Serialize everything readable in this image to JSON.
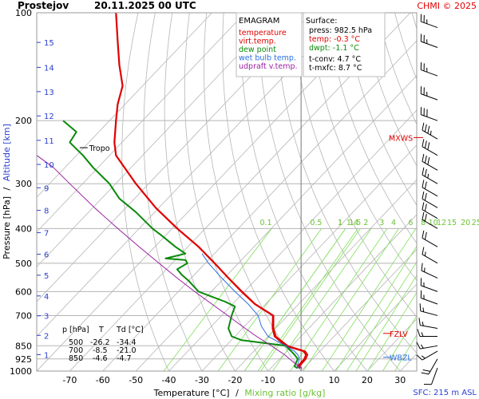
{
  "header": {
    "station": "Prostejov",
    "datetime": "20.11.2025 00 UTC",
    "credit": "CHMI © 2025"
  },
  "footer": {
    "sfc": "SFC: 215 m ASL"
  },
  "colors": {
    "temperature": "#e00000",
    "virt_temp": "#e00000",
    "dew_point": "#0a8a0a",
    "wet_bulb": "#2a6fe0",
    "updraft": "#9a1fa0",
    "isotherm": "#b5b5b5",
    "dry_adiabat": "#b5b5b5",
    "mixing_ratio": "#8ee26a",
    "pressure_line": "#b5b5b5",
    "altitude_axis": "#2a3fd0",
    "mixing_label": "#6cc234",
    "wind": "#000000",
    "marker_red": "#e00000",
    "marker_blue": "#2a6fe0"
  },
  "legend": {
    "title": "EMAGRAM",
    "items": [
      {
        "label": "temperature",
        "key": "temperature"
      },
      {
        "label": "virt.temp.",
        "key": "virt_temp"
      },
      {
        "label": "dew point",
        "key": "dew_point"
      },
      {
        "label": "wet bulb temp.",
        "key": "wet_bulb"
      },
      {
        "label": "udpraft v.temp.",
        "key": "updraft"
      }
    ]
  },
  "surface": {
    "title": "Surface:",
    "press": "press: 982.5 hPa",
    "temp": "temp: -0.3 °C",
    "dwpt": "dwpt: -1.1 °C",
    "tconv": "t-conv: 4.7 °C",
    "tmxfc": "t-mxfc: 8.7 °C"
  },
  "table": {
    "headers": [
      "p [hPa]",
      "T",
      "Td [°C]"
    ],
    "rows": [
      [
        "500",
        "-26.2",
        "-34.4"
      ],
      [
        "700",
        "-8.5",
        "-21.0"
      ],
      [
        "850",
        "-4.6",
        "-4.7"
      ]
    ]
  },
  "annotations": {
    "tropo": "Tropo",
    "mxws": "MXWS",
    "fzlv": "FZLV",
    "wbzl": "WBZL"
  },
  "chart_data": {
    "type": "line",
    "title": "EMAGRAM",
    "xlabel": "Temperature [°C]",
    "xlabel_sep": "/",
    "xlabel2": "Mixing ratio [g/kg]",
    "ylabel": "Pressure [hPa]",
    "ylabel_sep": "/",
    "ylabel2": "Altitude [km]",
    "xlim": [
      -80,
      35
    ],
    "ylim": [
      1000,
      100
    ],
    "y_scale": "log",
    "x_ticks": [
      -70,
      -60,
      -50,
      -40,
      -30,
      -20,
      -10,
      0,
      10,
      20,
      30
    ],
    "pressure_ticks": [
      100,
      200,
      300,
      400,
      500,
      600,
      700,
      850,
      925,
      1000
    ],
    "altitude_ticks": [
      {
        "km": 1,
        "p": 900
      },
      {
        "km": 2,
        "p": 795
      },
      {
        "km": 3,
        "p": 701
      },
      {
        "km": 4,
        "p": 617
      },
      {
        "km": 5,
        "p": 540
      },
      {
        "km": 6,
        "p": 472
      },
      {
        "km": 7,
        "p": 411
      },
      {
        "km": 8,
        "p": 356
      },
      {
        "km": 9,
        "p": 308
      },
      {
        "km": 10,
        "p": 265
      },
      {
        "km": 11,
        "p": 227
      },
      {
        "km": 12,
        "p": 194
      },
      {
        "km": 13,
        "p": 166
      },
      {
        "km": 14,
        "p": 142
      },
      {
        "km": 15,
        "p": 121
      }
    ],
    "isotherms": [
      -130,
      -120,
      -110,
      -100,
      -90,
      -80,
      -70,
      -60,
      -50,
      -40,
      -30,
      -20,
      -10,
      0,
      10,
      20,
      30
    ],
    "dry_adiabats_theta_c": [
      -40,
      -30,
      -20,
      -10,
      0,
      10,
      20,
      30,
      40,
      50,
      60,
      70,
      80,
      90,
      100,
      110,
      120,
      130,
      140,
      150,
      160,
      170,
      180,
      190,
      200,
      210,
      220,
      230,
      240,
      250
    ],
    "mixing_ratio_lines": [
      {
        "label": "0.1",
        "w": 0.1
      },
      {
        "label": "0.5",
        "w": 0.5
      },
      {
        "label": "1",
        "w": 1
      },
      {
        "label": "1.5",
        "w": 1.5
      },
      {
        "label": "1",
        "w": 1
      },
      {
        "label": "1.4",
        "w": 1.4
      },
      {
        "label": "2",
        "w": 2
      },
      {
        "label": "3",
        "w": 3
      },
      {
        "label": "4",
        "w": 4
      },
      {
        "label": "6",
        "w": 6
      },
      {
        "label": "8",
        "w": 8
      },
      {
        "label": "10",
        "w": 10
      },
      {
        "label": "12",
        "w": 12
      },
      {
        "label": "15",
        "w": 15
      },
      {
        "label": "20",
        "w": 20
      },
      {
        "label": "25",
        "w": 25
      }
    ],
    "mixing_ratio_label_p": 420,
    "series": [
      {
        "name": "temperature",
        "key": "temperature",
        "points": [
          [
            982.5,
            -0.3
          ],
          [
            970,
            -1
          ],
          [
            925,
            1
          ],
          [
            900,
            1.5
          ],
          [
            880,
            0.8
          ],
          [
            850,
            -4.6
          ],
          [
            800,
            -8
          ],
          [
            760,
            -8.6
          ],
          [
            700,
            -8.5
          ],
          [
            650,
            -14
          ],
          [
            600,
            -18
          ],
          [
            550,
            -22
          ],
          [
            500,
            -26.2
          ],
          [
            450,
            -31
          ],
          [
            400,
            -37.5
          ],
          [
            350,
            -44
          ],
          [
            300,
            -50
          ],
          [
            250,
            -56
          ],
          [
            230,
            -56.5
          ],
          [
            200,
            -56
          ],
          [
            180,
            -55.5
          ],
          [
            160,
            -54
          ],
          [
            140,
            -55
          ],
          [
            120,
            -55.5
          ],
          [
            100,
            -56
          ]
        ]
      },
      {
        "name": "virt.temp.",
        "key": "virt_temp",
        "points": [
          [
            982.5,
            0.2
          ],
          [
            970,
            -0.5
          ],
          [
            925,
            1.5
          ],
          [
            900,
            2
          ],
          [
            880,
            1.3
          ],
          [
            850,
            -4
          ],
          [
            800,
            -7.6
          ],
          [
            760,
            -8.3
          ],
          [
            700,
            -8.3
          ],
          [
            650,
            -13.8
          ],
          [
            600,
            -17.8
          ],
          [
            550,
            -21.9
          ],
          [
            500,
            -26.1
          ],
          [
            450,
            -30.9
          ],
          [
            400,
            -37.4
          ],
          [
            350,
            -44
          ],
          [
            300,
            -50
          ],
          [
            250,
            -56
          ],
          [
            230,
            -56.5
          ],
          [
            200,
            -56
          ],
          [
            180,
            -55.5
          ],
          [
            160,
            -54
          ],
          [
            140,
            -55
          ],
          [
            120,
            -55.5
          ],
          [
            100,
            -56
          ]
        ]
      },
      {
        "name": "dew point",
        "key": "dew_point",
        "points": [
          [
            982.5,
            -1.1
          ],
          [
            970,
            -2
          ],
          [
            925,
            -1
          ],
          [
            900,
            -2
          ],
          [
            880,
            -3
          ],
          [
            850,
            -4.7
          ],
          [
            820,
            -18
          ],
          [
            800,
            -21
          ],
          [
            760,
            -22
          ],
          [
            700,
            -21
          ],
          [
            660,
            -20
          ],
          [
            640,
            -23
          ],
          [
            620,
            -27
          ],
          [
            600,
            -31
          ],
          [
            560,
            -34
          ],
          [
            540,
            -36
          ],
          [
            520,
            -37.5
          ],
          [
            500,
            -34.4
          ],
          [
            490,
            -35
          ],
          [
            485,
            -41
          ],
          [
            470,
            -35
          ],
          [
            450,
            -38
          ],
          [
            420,
            -42
          ],
          [
            400,
            -45
          ],
          [
            360,
            -50
          ],
          [
            330,
            -55
          ],
          [
            300,
            -58
          ],
          [
            270,
            -63
          ],
          [
            250,
            -66
          ],
          [
            230,
            -70
          ],
          [
            215,
            -68
          ],
          [
            200,
            -72
          ]
        ]
      },
      {
        "name": "wet bulb temp.",
        "key": "wet_bulb",
        "points": [
          [
            982.5,
            -0.6
          ],
          [
            970,
            -1.2
          ],
          [
            925,
            -0.5
          ],
          [
            900,
            -1
          ],
          [
            880,
            -2
          ],
          [
            850,
            -4.7
          ],
          [
            800,
            -10
          ],
          [
            750,
            -12
          ],
          [
            700,
            -13
          ],
          [
            650,
            -16
          ],
          [
            600,
            -20
          ],
          [
            550,
            -24
          ],
          [
            500,
            -28
          ],
          [
            470,
            -30
          ]
        ]
      },
      {
        "name": "udpraft v.temp.",
        "key": "updraft",
        "points": [
          [
            982.5,
            0.2
          ],
          [
            950,
            -2
          ],
          [
            900,
            -5
          ],
          [
            850,
            -9
          ],
          [
            800,
            -13.5
          ],
          [
            750,
            -17.8
          ],
          [
            700,
            -22.2
          ],
          [
            650,
            -27
          ],
          [
            600,
            -32.2
          ],
          [
            550,
            -37.5
          ],
          [
            500,
            -43
          ],
          [
            450,
            -49
          ],
          [
            400,
            -55.5
          ],
          [
            350,
            -62.5
          ],
          [
            300,
            -70
          ],
          [
            270,
            -75
          ],
          [
            250,
            -80
          ]
        ]
      }
    ],
    "winds": [
      {
        "p": 980,
        "dir": 200,
        "spd": 10
      },
      {
        "p": 925,
        "dir": 210,
        "spd": 20
      },
      {
        "p": 880,
        "dir": 240,
        "spd": 15
      },
      {
        "p": 850,
        "dir": 260,
        "spd": 15
      },
      {
        "p": 800,
        "dir": 270,
        "spd": 15
      },
      {
        "p": 760,
        "dir": 280,
        "spd": 15
      },
      {
        "p": 700,
        "dir": 285,
        "spd": 15
      },
      {
        "p": 650,
        "dir": 290,
        "spd": 15
      },
      {
        "p": 600,
        "dir": 290,
        "spd": 15
      },
      {
        "p": 550,
        "dir": 295,
        "spd": 15
      },
      {
        "p": 500,
        "dir": 300,
        "spd": 15
      },
      {
        "p": 450,
        "dir": 300,
        "spd": 20
      },
      {
        "p": 400,
        "dir": 300,
        "spd": 20
      },
      {
        "p": 375,
        "dir": 300,
        "spd": 20
      },
      {
        "p": 350,
        "dir": 300,
        "spd": 20
      },
      {
        "p": 325,
        "dir": 300,
        "spd": 20
      },
      {
        "p": 300,
        "dir": 300,
        "spd": 25
      },
      {
        "p": 275,
        "dir": 300,
        "spd": 30
      },
      {
        "p": 250,
        "dir": 300,
        "spd": 30
      },
      {
        "p": 225,
        "dir": 300,
        "spd": 35
      },
      {
        "p": 200,
        "dir": 290,
        "spd": 30
      },
      {
        "p": 175,
        "dir": 290,
        "spd": 25
      },
      {
        "p": 150,
        "dir": 290,
        "spd": 25
      },
      {
        "p": 125,
        "dir": 290,
        "spd": 25
      },
      {
        "p": 110,
        "dir": 290,
        "spd": 25
      }
    ],
    "markers": {
      "tropo_p": 238,
      "tropo_t": -67,
      "mxws_p": 223,
      "fzlv_p": 785,
      "wbzl_p": 915
    }
  }
}
